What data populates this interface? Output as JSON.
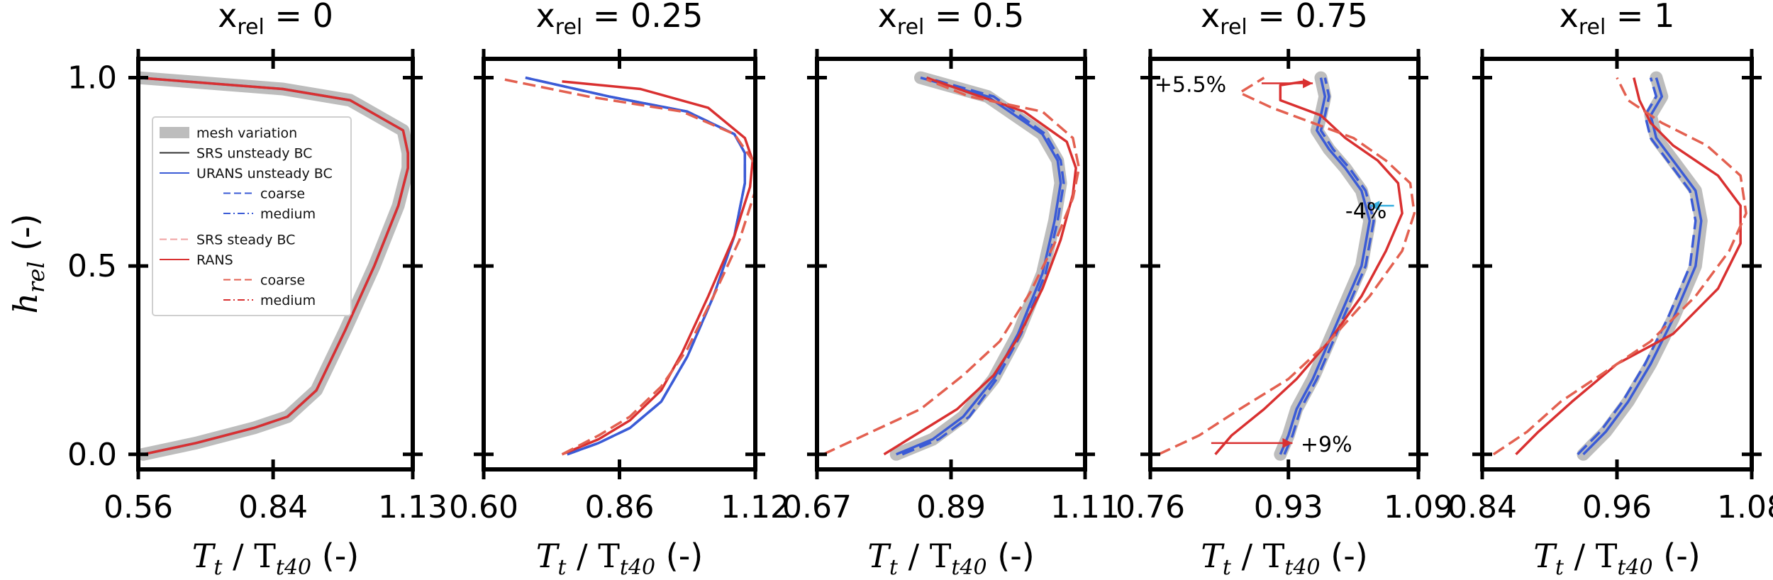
{
  "figure": {
    "ylabel_main": "h",
    "ylabel_sub": "rel",
    "ylabel_unit": " (-)",
    "xlabel_main": "T",
    "xlabel_sub1": "t",
    "xlabel_mid": " / T",
    "xlabel_sub2": "t40",
    "xlabel_unit": " (-)"
  },
  "legend": {
    "items": [
      {
        "label": "mesh variation",
        "style": "band",
        "color": "#bdbdbd",
        "indent": false
      },
      {
        "label": "SRS unsteady BC",
        "style": "solid",
        "color": "#333333",
        "indent": false
      },
      {
        "label": "URANS unsteady BC",
        "style": "solid",
        "color": "#3b5bd6",
        "indent": false
      },
      {
        "label": "coarse",
        "style": "dash",
        "color": "#3b5bd6",
        "indent": true
      },
      {
        "label": "medium",
        "style": "dashdot",
        "color": "#3b5bd6",
        "indent": true
      },
      {
        "label": "SRS steady BC",
        "style": "dash",
        "color": "#f0a0a0",
        "indent": false
      },
      {
        "label": "RANS",
        "style": "solid",
        "color": "#d93030",
        "indent": false
      },
      {
        "label": "coarse",
        "style": "dash",
        "color": "#e36050",
        "indent": true
      },
      {
        "label": "medium",
        "style": "dashdot",
        "color": "#d93030",
        "indent": true
      }
    ]
  },
  "colors": {
    "unsteady": "#3b5bd6",
    "srs_unsteady": "#333333",
    "steady": "#d93030",
    "steady_dash": "#e36050",
    "band": "#bdbdbd",
    "cyan_arrow": "#3ab0e0",
    "red_arrow": "#d93030"
  },
  "chart_data": [
    {
      "type": "line",
      "title_main": "x",
      "title_sub": "rel",
      "title_value": " = 0",
      "xticks": [
        "0.56",
        "0.84",
        "1.13"
      ],
      "yticks": [
        "0.0",
        "0.5",
        "1.0"
      ],
      "xlim": [
        0.56,
        1.13
      ],
      "ylim": [
        -0.04,
        1.05
      ],
      "series": [
        {
          "role": "band",
          "x": [
            0.57,
            0.68,
            0.8,
            0.87,
            0.93,
            0.99,
            1.05,
            1.1,
            1.12,
            1.12,
            1.11,
            1.0,
            0.86,
            0.56
          ],
          "y": [
            0.0,
            0.03,
            0.07,
            0.1,
            0.17,
            0.33,
            0.5,
            0.66,
            0.76,
            0.8,
            0.86,
            0.94,
            0.97,
            1.0
          ]
        },
        {
          "role": "unsteady",
          "dash": "",
          "x": [
            0.57,
            0.68,
            0.8,
            0.87,
            0.93,
            0.99,
            1.05,
            1.1,
            1.12,
            1.12,
            1.11,
            1.0,
            0.86,
            0.56
          ],
          "y": [
            0.0,
            0.03,
            0.07,
            0.1,
            0.17,
            0.33,
            0.5,
            0.66,
            0.76,
            0.8,
            0.86,
            0.94,
            0.97,
            1.0
          ]
        },
        {
          "role": "steady",
          "dash": "",
          "x": [
            0.57,
            0.68,
            0.8,
            0.87,
            0.93,
            0.99,
            1.05,
            1.1,
            1.12,
            1.12,
            1.11,
            1.0,
            0.86,
            0.56
          ],
          "y": [
            0.0,
            0.03,
            0.07,
            0.1,
            0.17,
            0.33,
            0.5,
            0.66,
            0.76,
            0.8,
            0.86,
            0.94,
            0.97,
            1.0
          ]
        }
      ]
    },
    {
      "type": "line",
      "title_main": "x",
      "title_sub": "rel",
      "title_value": " = 0.25",
      "xticks": [
        "0.60",
        "0.86",
        "1.12"
      ],
      "yticks": [
        "0.0",
        "0.5",
        "1.0"
      ],
      "xlim": [
        0.6,
        1.12
      ],
      "ylim": [
        -0.04,
        1.05
      ],
      "series": [
        {
          "role": "unsteady",
          "dash": "",
          "x": [
            0.76,
            0.82,
            0.88,
            0.94,
            0.99,
            1.04,
            1.08,
            1.1,
            1.1,
            1.08,
            0.99,
            0.84,
            0.68
          ],
          "y": [
            0.0,
            0.03,
            0.07,
            0.14,
            0.26,
            0.42,
            0.58,
            0.72,
            0.8,
            0.85,
            0.91,
            0.95,
            1.0
          ]
        },
        {
          "role": "unsteady",
          "dash": "18 8",
          "x": [
            0.76,
            0.82,
            0.88,
            0.94,
            0.99,
            1.04,
            1.08,
            1.1,
            1.1,
            1.08,
            0.99,
            0.84,
            0.68
          ],
          "y": [
            0.0,
            0.03,
            0.07,
            0.14,
            0.26,
            0.42,
            0.58,
            0.72,
            0.8,
            0.85,
            0.91,
            0.95,
            1.0
          ]
        },
        {
          "role": "steady",
          "dash": "",
          "x": [
            0.75,
            0.82,
            0.88,
            0.94,
            0.98,
            1.03,
            1.08,
            1.11,
            1.115,
            1.1,
            1.03,
            0.9,
            0.75
          ],
          "y": [
            0.0,
            0.04,
            0.09,
            0.17,
            0.27,
            0.42,
            0.58,
            0.71,
            0.78,
            0.84,
            0.92,
            0.97,
            0.99
          ]
        },
        {
          "role": "steady_dash",
          "dash": "18 8",
          "x": [
            0.75,
            0.82,
            0.88,
            0.94,
            0.99,
            1.04,
            1.09,
            1.12,
            1.12,
            1.08,
            0.98,
            0.8,
            0.64
          ],
          "y": [
            0.0,
            0.05,
            0.1,
            0.18,
            0.28,
            0.42,
            0.57,
            0.7,
            0.77,
            0.85,
            0.91,
            0.95,
            0.995
          ]
        }
      ]
    },
    {
      "type": "line",
      "title_main": "x",
      "title_sub": "rel",
      "title_value": " = 0.5",
      "xticks": [
        "0.67",
        "0.89",
        "1.11"
      ],
      "yticks": [
        "0.0",
        "0.5",
        "1.0"
      ],
      "xlim": [
        0.67,
        1.11
      ],
      "ylim": [
        -0.04,
        1.05
      ],
      "series": [
        {
          "role": "band",
          "x": [
            0.8,
            0.86,
            0.91,
            0.96,
            1.0,
            1.04,
            1.06,
            1.07,
            1.065,
            1.04,
            0.95,
            0.84
          ],
          "y": [
            0.0,
            0.04,
            0.1,
            0.2,
            0.32,
            0.48,
            0.62,
            0.72,
            0.78,
            0.85,
            0.95,
            1.0
          ]
        },
        {
          "role": "unsteady",
          "dash": "",
          "x": [
            0.8,
            0.86,
            0.91,
            0.96,
            1.0,
            1.04,
            1.06,
            1.07,
            1.065,
            1.04,
            0.95,
            0.84
          ],
          "y": [
            0.0,
            0.04,
            0.1,
            0.2,
            0.32,
            0.48,
            0.62,
            0.72,
            0.78,
            0.85,
            0.95,
            1.0
          ]
        },
        {
          "role": "unsteady",
          "dash": "18 8",
          "x": [
            0.81,
            0.87,
            0.92,
            0.965,
            1.005,
            1.045,
            1.065,
            1.075,
            1.07,
            1.045,
            0.96,
            0.85
          ],
          "y": [
            0.0,
            0.04,
            0.1,
            0.2,
            0.32,
            0.48,
            0.62,
            0.72,
            0.78,
            0.85,
            0.95,
            1.0
          ]
        },
        {
          "role": "steady",
          "dash": "",
          "x": [
            0.78,
            0.84,
            0.9,
            0.96,
            1.0,
            1.04,
            1.07,
            1.09,
            1.095,
            1.08,
            1.01,
            0.92,
            0.85
          ],
          "y": [
            0.0,
            0.06,
            0.12,
            0.21,
            0.31,
            0.44,
            0.57,
            0.69,
            0.76,
            0.83,
            0.91,
            0.96,
            1.0
          ]
        },
        {
          "role": "steady_dash",
          "dash": "18 8",
          "x": [
            0.68,
            0.76,
            0.84,
            0.91,
            0.97,
            1.02,
            1.06,
            1.09,
            1.1,
            1.09,
            1.04,
            0.92,
            0.85
          ],
          "y": [
            0.0,
            0.06,
            0.12,
            0.21,
            0.3,
            0.43,
            0.56,
            0.68,
            0.76,
            0.84,
            0.91,
            0.95,
            0.995
          ]
        }
      ]
    },
    {
      "type": "line",
      "title_main": "x",
      "title_sub": "rel",
      "title_value": " = 0.75",
      "xticks": [
        "0.76",
        "0.93",
        "1.09"
      ],
      "yticks": [
        "0.0",
        "0.5",
        "1.0"
      ],
      "xlim": [
        0.76,
        1.09
      ],
      "ylim": [
        -0.04,
        1.05
      ],
      "annotations": [
        {
          "text": "+5.5%",
          "x": 0.765,
          "y": 0.985,
          "ax1": 0.897,
          "ax2": 0.96,
          "ay": 0.985,
          "color": "red_arrow"
        },
        {
          "text": "-4%",
          "x": 1.0,
          "y": 0.65,
          "ax1": 1.06,
          "ax2": 1.03,
          "ay": 0.66,
          "color": "cyan_arrow"
        },
        {
          "text": "+9%",
          "x": 0.945,
          "y": 0.03,
          "ax1": 0.835,
          "ax2": 0.935,
          "ay": 0.03,
          "color": "red_arrow"
        }
      ],
      "series": [
        {
          "role": "band",
          "x": [
            0.92,
            0.93,
            0.94,
            0.96,
            0.98,
            1.0,
            1.02,
            1.03,
            1.02,
            1.0,
            0.98,
            0.965,
            0.97,
            0.975,
            0.97
          ],
          "y": [
            0.0,
            0.05,
            0.12,
            0.2,
            0.3,
            0.4,
            0.5,
            0.62,
            0.7,
            0.76,
            0.81,
            0.86,
            0.9,
            0.95,
            1.0
          ]
        },
        {
          "role": "unsteady",
          "dash": "",
          "x": [
            0.92,
            0.93,
            0.94,
            0.96,
            0.98,
            1.0,
            1.02,
            1.03,
            1.02,
            1.0,
            0.98,
            0.965,
            0.97,
            0.975,
            0.97
          ],
          "y": [
            0.0,
            0.05,
            0.12,
            0.2,
            0.3,
            0.4,
            0.5,
            0.62,
            0.7,
            0.76,
            0.81,
            0.86,
            0.9,
            0.95,
            1.0
          ]
        },
        {
          "role": "unsteady",
          "dash": "18 8",
          "x": [
            0.925,
            0.935,
            0.945,
            0.965,
            0.985,
            1.005,
            1.025,
            1.035,
            1.025,
            1.005,
            0.985,
            0.97,
            0.975,
            0.98,
            0.975
          ],
          "y": [
            0.0,
            0.05,
            0.12,
            0.2,
            0.3,
            0.4,
            0.5,
            0.62,
            0.7,
            0.76,
            0.81,
            0.86,
            0.9,
            0.95,
            1.0
          ]
        },
        {
          "role": "steady",
          "dash": "",
          "x": [
            0.84,
            0.86,
            0.9,
            0.94,
            0.98,
            1.02,
            1.05,
            1.07,
            1.065,
            1.04,
            1.0,
            0.97,
            0.92,
            0.92,
            0.95
          ],
          "y": [
            0.0,
            0.05,
            0.12,
            0.2,
            0.3,
            0.42,
            0.54,
            0.64,
            0.72,
            0.78,
            0.84,
            0.9,
            0.94,
            0.98,
            0.99
          ]
        },
        {
          "role": "steady_dash",
          "dash": "18 8",
          "x": [
            0.77,
            0.82,
            0.87,
            0.93,
            0.98,
            1.03,
            1.07,
            1.085,
            1.08,
            1.05,
            1.01,
            0.96,
            0.91,
            0.87,
            0.9
          ],
          "y": [
            0.0,
            0.05,
            0.12,
            0.2,
            0.3,
            0.42,
            0.54,
            0.64,
            0.72,
            0.78,
            0.84,
            0.88,
            0.92,
            0.96,
            1.0
          ]
        }
      ]
    },
    {
      "type": "line",
      "title_main": "x",
      "title_sub": "rel",
      "title_value": " = 1",
      "xticks": [
        "0.84",
        "0.96",
        "1.08"
      ],
      "yticks": [
        "0.0",
        "0.5",
        "1.0"
      ],
      "xlim": [
        0.84,
        1.08
      ],
      "ylim": [
        -0.04,
        1.05
      ],
      "series": [
        {
          "role": "band",
          "x": [
            0.93,
            0.95,
            0.97,
            0.99,
            1.01,
            1.03,
            1.035,
            1.03,
            1.01,
            0.995,
            0.99,
            1.0,
            0.995
          ],
          "y": [
            0.0,
            0.06,
            0.14,
            0.24,
            0.36,
            0.5,
            0.62,
            0.7,
            0.78,
            0.84,
            0.9,
            0.95,
            1.0
          ]
        },
        {
          "role": "unsteady",
          "dash": "",
          "x": [
            0.93,
            0.95,
            0.97,
            0.99,
            1.01,
            1.03,
            1.035,
            1.03,
            1.01,
            0.995,
            0.99,
            1.0,
            0.995
          ],
          "y": [
            0.0,
            0.06,
            0.14,
            0.24,
            0.36,
            0.5,
            0.62,
            0.7,
            0.78,
            0.84,
            0.9,
            0.95,
            1.0
          ]
        },
        {
          "role": "unsteady",
          "dash": "18 8",
          "x": [
            0.925,
            0.945,
            0.965,
            0.985,
            1.005,
            1.025,
            1.03,
            1.025,
            1.005,
            0.99,
            0.985,
            0.995,
            0.99
          ],
          "y": [
            0.0,
            0.06,
            0.14,
            0.24,
            0.36,
            0.5,
            0.62,
            0.7,
            0.78,
            0.84,
            0.9,
            0.95,
            1.0
          ]
        },
        {
          "role": "steady",
          "dash": "",
          "x": [
            0.87,
            0.89,
            0.92,
            0.96,
            1.01,
            1.05,
            1.07,
            1.07,
            1.05,
            1.01,
            0.99,
            0.98,
            0.975
          ],
          "y": [
            0.0,
            0.06,
            0.14,
            0.24,
            0.32,
            0.44,
            0.56,
            0.66,
            0.74,
            0.82,
            0.88,
            0.94,
            1.0
          ]
        },
        {
          "role": "steady_dash",
          "dash": "18 8",
          "x": [
            0.85,
            0.88,
            0.91,
            0.95,
            0.99,
            1.03,
            1.06,
            1.075,
            1.07,
            1.04,
            1.0,
            0.97,
            0.96
          ],
          "y": [
            0.0,
            0.06,
            0.14,
            0.22,
            0.3,
            0.42,
            0.54,
            0.64,
            0.74,
            0.82,
            0.88,
            0.94,
            1.0
          ]
        }
      ]
    }
  ]
}
